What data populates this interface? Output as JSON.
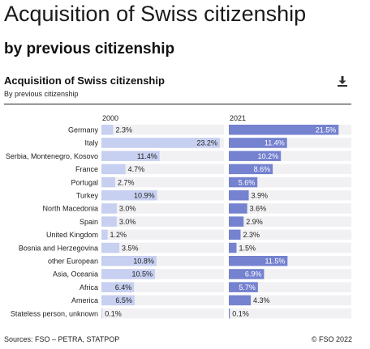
{
  "header": {
    "title": "Acquisition of Swiss citizenship",
    "subtitle": "by previous citizenship"
  },
  "chart_data": {
    "type": "bar",
    "orientation": "horizontal",
    "title": "Acquisition of Swiss citizenship",
    "subtitle": "By previous citizenship",
    "categories": [
      "Germany",
      "Italy",
      "Serbia, Montenegro, Kosovo",
      "France",
      "Portugal",
      "Turkey",
      "North Macedonia",
      "Spain",
      "United Kingdom",
      "Bosnia and Herzegovina",
      "other European",
      "Asia, Oceania",
      "Africa",
      "America",
      "Stateless person, unknown"
    ],
    "series": [
      {
        "name": "2000",
        "color": "#c7d0f0",
        "values": [
          2.3,
          23.2,
          11.4,
          4.7,
          2.7,
          10.9,
          3.0,
          3.0,
          1.2,
          3.5,
          10.8,
          10.5,
          6.4,
          6.5,
          0.1
        ],
        "labels": [
          "2.3%",
          "23.2%",
          "11.4%",
          "4.7%",
          "2.7%",
          "10.9%",
          "3.0%",
          "3.0%",
          "1.2%",
          "3.5%",
          "10.8%",
          "10.5%",
          "6.4%",
          "6.5%",
          "0.1%"
        ]
      },
      {
        "name": "2021",
        "color": "#7582d0",
        "values": [
          21.5,
          11.4,
          10.2,
          8.6,
          5.6,
          3.9,
          3.6,
          2.9,
          2.3,
          1.5,
          11.5,
          6.9,
          5.7,
          4.3,
          0.1
        ],
        "labels": [
          "21.5%",
          "11.4%",
          "10.2%",
          "8.6%",
          "5.6%",
          "3.9%",
          "3.6%",
          "2.9%",
          "2.3%",
          "1.5%",
          "11.5%",
          "6.9%",
          "5.7%",
          "4.3%",
          "0.1%"
        ]
      }
    ],
    "xlim": [
      0,
      24
    ],
    "track_color": "#f1f1f3"
  },
  "footer": {
    "source": "Sources: FSO – PETRA, STATPOP",
    "copyright": "© FSO 2022"
  },
  "icons": {
    "download": "download-icon"
  }
}
